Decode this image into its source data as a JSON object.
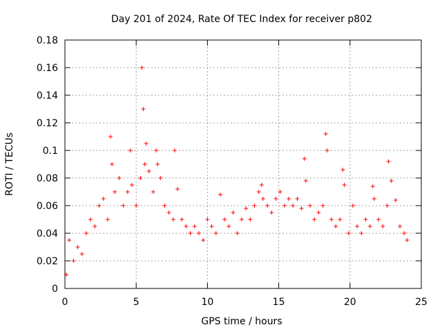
{
  "chart_data": {
    "type": "scatter",
    "title": "Day 201 of 2024, Rate Of TEC Index for receiver p802",
    "xlabel": "GPS time / hours",
    "ylabel": "ROTI / TECUs",
    "xlim": [
      0,
      25
    ],
    "ylim": [
      0,
      0.18
    ],
    "xticks": [
      0,
      5,
      10,
      15,
      20,
      25
    ],
    "xtick_labels": [
      "0",
      "5",
      "10",
      "15",
      "20",
      "25"
    ],
    "yticks": [
      0,
      0.02,
      0.04,
      0.06,
      0.08,
      0.1,
      0.12,
      0.14,
      0.16,
      0.18
    ],
    "ytick_labels": [
      "0",
      "0.02",
      "0.04",
      "0.06",
      "0.08",
      "0.1",
      "0.12",
      "0.14",
      "0.16",
      "0.18"
    ],
    "grid": true,
    "marker": "plus",
    "series": [
      {
        "color": "#ff0000",
        "x": [
          0.1,
          0.3,
          0.6,
          0.9,
          1.2,
          1.5,
          1.8,
          2.1,
          2.4,
          2.7,
          3.0,
          3.2,
          3.3,
          3.5,
          3.8,
          4.1,
          4.4,
          4.6,
          4.7,
          5.0,
          5.3,
          5.4,
          5.5,
          5.6,
          5.7,
          5.9,
          6.2,
          6.4,
          6.5,
          6.7,
          7.0,
          7.3,
          7.6,
          7.7,
          7.9,
          8.2,
          8.5,
          8.8,
          9.1,
          9.4,
          9.7,
          10.0,
          10.3,
          10.6,
          10.9,
          11.2,
          11.5,
          11.8,
          12.1,
          12.4,
          12.7,
          13.0,
          13.3,
          13.6,
          13.8,
          13.9,
          14.2,
          14.5,
          14.8,
          15.1,
          15.4,
          15.7,
          16.0,
          16.3,
          16.6,
          16.8,
          16.9,
          17.2,
          17.5,
          17.8,
          18.1,
          18.3,
          18.4,
          18.7,
          19.0,
          19.3,
          19.5,
          19.6,
          19.9,
          20.2,
          20.5,
          20.8,
          21.1,
          21.4,
          21.6,
          21.7,
          22.0,
          22.3,
          22.6,
          22.7,
          22.9,
          23.2,
          23.5,
          23.8,
          24.0
        ],
        "y": [
          0.01,
          0.035,
          0.02,
          0.03,
          0.025,
          0.04,
          0.05,
          0.045,
          0.06,
          0.065,
          0.05,
          0.11,
          0.09,
          0.07,
          0.08,
          0.06,
          0.07,
          0.1,
          0.075,
          0.06,
          0.08,
          0.16,
          0.13,
          0.09,
          0.105,
          0.085,
          0.07,
          0.1,
          0.09,
          0.08,
          0.06,
          0.055,
          0.05,
          0.1,
          0.072,
          0.05,
          0.045,
          0.04,
          0.045,
          0.04,
          0.035,
          0.05,
          0.045,
          0.04,
          0.068,
          0.05,
          0.045,
          0.055,
          0.04,
          0.05,
          0.058,
          0.05,
          0.06,
          0.07,
          0.075,
          0.065,
          0.06,
          0.055,
          0.065,
          0.07,
          0.06,
          0.065,
          0.06,
          0.065,
          0.058,
          0.094,
          0.078,
          0.06,
          0.05,
          0.055,
          0.06,
          0.112,
          0.1,
          0.05,
          0.045,
          0.05,
          0.086,
          0.075,
          0.04,
          0.06,
          0.045,
          0.04,
          0.05,
          0.045,
          0.074,
          0.065,
          0.05,
          0.045,
          0.06,
          0.092,
          0.078,
          0.064,
          0.045,
          0.04,
          0.035
        ]
      }
    ]
  }
}
